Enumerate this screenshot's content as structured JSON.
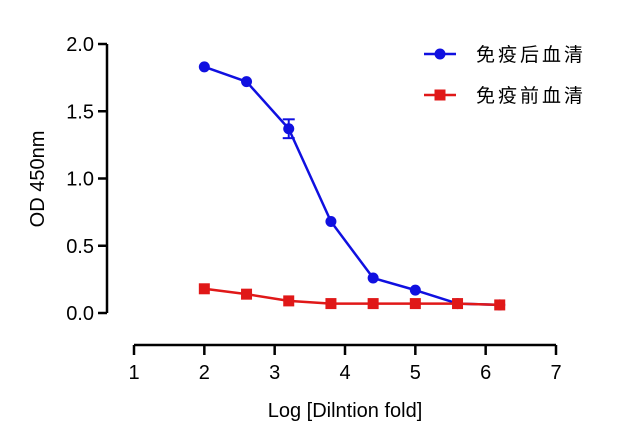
{
  "chart_data": {
    "type": "line",
    "xlabel": "Log [Dilntion fold]",
    "ylabel": "OD 450nm",
    "xlim": [
      1,
      7
    ],
    "ylim": [
      0,
      2.0
    ],
    "xticks": [
      1,
      2,
      3,
      4,
      5,
      6,
      7
    ],
    "xtick_labels": [
      "1",
      "2",
      "3",
      "4",
      "5",
      "6",
      "7"
    ],
    "yticks": [
      0,
      0.5,
      1.0,
      1.5,
      2.0
    ],
    "ytick_labels": [
      "0.0",
      "0.5",
      "1.0",
      "1.5",
      "2.0"
    ],
    "grid": false,
    "legend_position": "top-right",
    "series": [
      {
        "name": "免疫后血清",
        "color": "#1010e0",
        "marker": "circle",
        "x": [
          2.0,
          2.6,
          3.2,
          3.8,
          4.4,
          5.0,
          5.6,
          6.2
        ],
        "y": [
          1.83,
          1.72,
          1.37,
          0.68,
          0.26,
          0.17,
          0.07,
          0.06
        ],
        "error": [
          0,
          0,
          0.07,
          0,
          0,
          0,
          0,
          0
        ]
      },
      {
        "name": "免疫前血清",
        "color": "#e01818",
        "marker": "square",
        "x": [
          2.0,
          2.6,
          3.2,
          3.8,
          4.4,
          5.0,
          5.6,
          6.2
        ],
        "y": [
          0.18,
          0.14,
          0.09,
          0.07,
          0.07,
          0.07,
          0.07,
          0.06
        ],
        "error": [
          0,
          0,
          0,
          0,
          0,
          0,
          0,
          0
        ]
      }
    ]
  }
}
